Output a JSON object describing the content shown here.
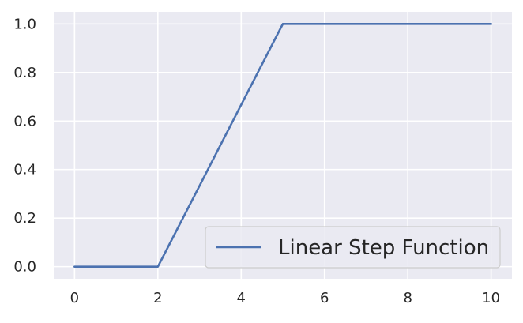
{
  "chart_data": {
    "type": "line",
    "title": "",
    "xlabel": "",
    "ylabel": "",
    "xlim": [
      -0.5,
      10.5
    ],
    "ylim": [
      -0.05,
      1.05
    ],
    "x_ticks": [
      0,
      2,
      4,
      6,
      8,
      10
    ],
    "x_tick_labels": [
      "0",
      "2",
      "4",
      "6",
      "8",
      "10"
    ],
    "y_ticks": [
      0.0,
      0.2,
      0.4,
      0.6,
      0.8,
      1.0
    ],
    "y_tick_labels": [
      "0.0",
      "0.2",
      "0.4",
      "0.6",
      "0.8",
      "1.0"
    ],
    "grid": true,
    "legend_position": "lower-right",
    "series": [
      {
        "name": "Linear Step Function",
        "color": "#4c72b0",
        "x": [
          0,
          1.9,
          2.0,
          2.1,
          3.0,
          4.0,
          4.9,
          5.0,
          5.1,
          6.0,
          7.0,
          8.0,
          9.0,
          10.0
        ],
        "y": [
          0,
          0,
          0,
          0.033,
          0.333,
          0.667,
          0.967,
          1.0,
          1.0,
          1.0,
          1.0,
          1.0,
          1.0,
          1.0
        ]
      }
    ],
    "colors": {
      "plot_background": "#eaeaf2",
      "grid": "#ffffff",
      "text": "#262626"
    }
  }
}
